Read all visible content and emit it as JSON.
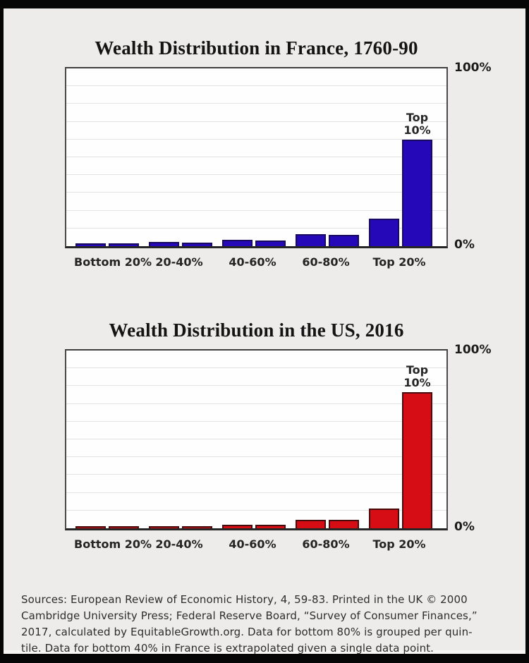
{
  "chart_data": [
    {
      "type": "bar",
      "title": "Wealth Distribution in France, 1760-90",
      "categories": [
        "Bottom 20%",
        "20-40%",
        "40-60%",
        "60-80%",
        "Top 20%"
      ],
      "values": [
        1.5,
        1.5,
        2.2,
        2.0,
        3.5,
        3.3,
        6.6,
        6.3,
        15.6,
        60
      ],
      "bars_per_category": 2,
      "annotation_lines": [
        "Top",
        "10%"
      ],
      "annotation_on_bar_index": 9,
      "y_top_label": "100%",
      "y_bottom_label": "0%",
      "ylim": [
        0,
        100
      ],
      "gridline_interval": 10,
      "bar_color": "#2508b8",
      "bar_edge_color": "#160b60"
    },
    {
      "type": "bar",
      "title": "Wealth Distribution in the US, 2016",
      "categories": [
        "Bottom 20%",
        "20-40%",
        "40-60%",
        "60-80%",
        "Top 20%"
      ],
      "values": [
        1.0,
        1.0,
        1.1,
        1.1,
        2.0,
        2.0,
        4.7,
        4.6,
        11,
        76.5
      ],
      "bars_per_category": 2,
      "annotation_lines": [
        "Top",
        "10%"
      ],
      "annotation_on_bar_index": 9,
      "y_top_label": "100%",
      "y_bottom_label": "0%",
      "ylim": [
        0,
        100
      ],
      "gridline_interval": 10,
      "bar_color": "#d60d15",
      "bar_edge_color": "#470c0e"
    }
  ],
  "sources": {
    "lines": [
      "Sources: European Review of Economic History, 4, 59-83. Printed in the UK © 2000",
      "Cambridge University Press; Federal Reserve Board, “Survey of Consumer Finances,”",
      "2017, calculated by EquitableGrowth.org. Data for bottom 80% is grouped per quin-",
      "tile. Data for bottom 40% in France is extrapolated given a single data point."
    ]
  }
}
